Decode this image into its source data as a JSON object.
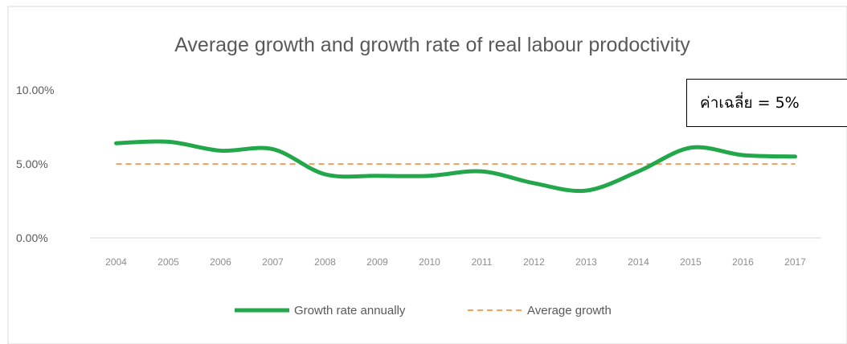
{
  "chart_data": {
    "type": "line",
    "title": "Average growth and growth rate of real labour prodoctivity",
    "categories": [
      "2004",
      "2005",
      "2006",
      "2007",
      "2008",
      "2009",
      "2010",
      "2011",
      "2012",
      "2013",
      "2014",
      "2015",
      "2016",
      "2017"
    ],
    "series": [
      {
        "name": "Growth rate annually",
        "color": "#22a84a",
        "values": [
          6.4,
          6.5,
          5.9,
          6.0,
          4.3,
          4.2,
          4.2,
          4.5,
          3.7,
          3.2,
          4.5,
          6.1,
          5.6,
          5.5
        ]
      },
      {
        "name": "Average growth",
        "color": "#f4a261",
        "values": [
          5.0,
          5.0,
          5.0,
          5.0,
          5.0,
          5.0,
          5.0,
          5.0,
          5.0,
          5.0,
          5.0,
          5.0,
          5.0,
          5.0
        ]
      }
    ],
    "yticks": [
      "10.00%",
      "5.00%",
      "0.00%"
    ],
    "ytick_values": [
      10,
      5,
      0
    ],
    "ylim": [
      0,
      10
    ],
    "xlabel": "",
    "ylabel": "",
    "grid": false,
    "legend": "bottom-center"
  },
  "annotation": {
    "text": "ค่าเฉลี่ย = 5%"
  }
}
